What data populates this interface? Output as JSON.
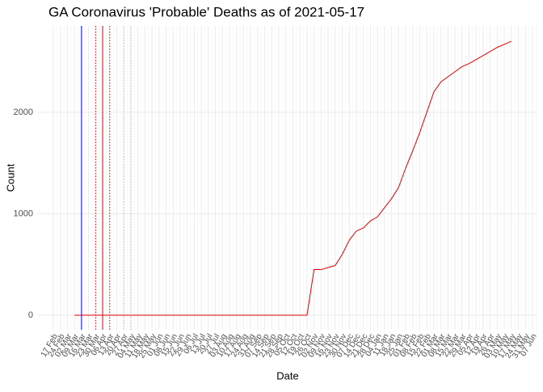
{
  "chart_data": {
    "type": "line",
    "title": "GA Coronavirus 'Probable' Deaths as of 2021-05-17",
    "x_label": "Date",
    "y_label": "Count",
    "categories": [
      "17 Feb",
      "24 Feb",
      "02 Mar",
      "09 Mar",
      "16 Mar",
      "23 Mar",
      "30 Mar",
      "06 Apr",
      "13 Apr",
      "20 Apr",
      "27 Apr",
      "04 May",
      "11 May",
      "18 May",
      "25 May",
      "01 Jun",
      "08 Jun",
      "15 Jun",
      "22 Jun",
      "29 Jun",
      "06 Jul",
      "13 Jul",
      "20 Jul",
      "27 Jul",
      "03 Aug",
      "10 Aug",
      "17 Aug",
      "24 Aug",
      "31 Aug",
      "07 Sep",
      "14 Sep",
      "21 Sep",
      "28 Sep",
      "05 Oct",
      "12 Oct",
      "19 Oct",
      "26 Oct",
      "02 Nov",
      "09 Nov",
      "16 Nov",
      "23 Nov",
      "30 Nov",
      "07 Dec",
      "14 Dec",
      "21 Dec",
      "28 Dec",
      "04 Jan",
      "11 Jan",
      "18 Jan",
      "25 Jan",
      "01 Feb",
      "08 Feb",
      "15 Feb",
      "22 Feb",
      "01 Mar",
      "08 Mar",
      "15 Mar",
      "22 Mar",
      "29 Mar",
      "05 Apr",
      "12 Apr",
      "19 Apr",
      "26 Apr",
      "03 May",
      "10 May",
      "17 May",
      "24 May",
      "31 May",
      "07 Jun"
    ],
    "series": [
      {
        "color": "#e00000",
        "values": [
          null,
          null,
          null,
          0,
          0,
          0,
          0,
          0,
          0,
          0,
          0,
          0,
          0,
          0,
          0,
          0,
          0,
          0,
          0,
          0,
          0,
          0,
          0,
          0,
          0,
          0,
          0,
          0,
          0,
          0,
          0,
          0,
          0,
          0,
          0,
          0,
          0,
          450,
          450,
          470,
          490,
          600,
          740,
          830,
          860,
          930,
          970,
          1060,
          1150,
          1260,
          1450,
          1620,
          1800,
          2000,
          2200,
          2300,
          2350,
          2400,
          2450,
          2480,
          2520,
          2560,
          2600,
          2640,
          2670,
          2700,
          null,
          null,
          null
        ]
      }
    ],
    "vlines": [
      {
        "at": "16 Mar",
        "color": "#0000ee",
        "dash": false
      },
      {
        "at": "30 Mar",
        "color": "#e00000",
        "dash": true
      },
      {
        "at": "06 Apr",
        "color": "#e00000",
        "dash": false
      },
      {
        "at": "13 Apr",
        "color": "#e00000",
        "dash": true
      },
      {
        "at": "27 Apr",
        "color": "#f4a0a0",
        "dash": true
      },
      {
        "at": "04 May",
        "color": "#f4a0a0",
        "dash": true
      }
    ],
    "ylim": [
      -143,
      2852
    ],
    "yticks": [
      0,
      1000,
      2000
    ],
    "grid": true
  }
}
